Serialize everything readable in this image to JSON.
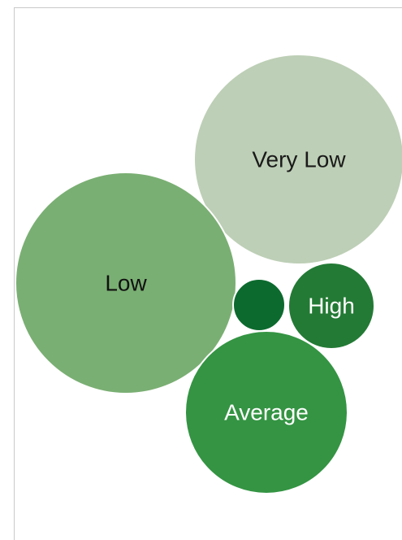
{
  "chart_data": {
    "type": "bubble",
    "title": "",
    "legend": "none",
    "bubbles": [
      {
        "label": "Very Low",
        "value": 30,
        "color": "#bdcfb6",
        "text_color": "#1a1a1a"
      },
      {
        "label": "Low",
        "value": 33,
        "color": "#7aaf73",
        "text_color": "#111111"
      },
      {
        "label": "",
        "value": 2,
        "color": "#0c6a2e",
        "text_color": "#ffffff"
      },
      {
        "label": "High",
        "value": 5,
        "color": "#237a35",
        "text_color": "#ffffff"
      },
      {
        "label": "Average",
        "value": 18,
        "color": "#349443",
        "text_color": "#ffffff"
      }
    ]
  }
}
